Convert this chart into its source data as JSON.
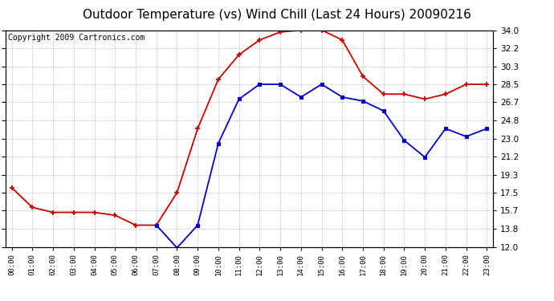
{
  "title": "Outdoor Temperature (vs) Wind Chill (Last 24 Hours) 20090216",
  "copyright": "Copyright 2009 Cartronics.com",
  "x_labels": [
    "00:00",
    "01:00",
    "02:00",
    "03:00",
    "04:00",
    "05:00",
    "06:00",
    "07:00",
    "08:00",
    "09:00",
    "10:00",
    "11:00",
    "12:00",
    "13:00",
    "14:00",
    "15:00",
    "16:00",
    "17:00",
    "18:00",
    "19:00",
    "20:00",
    "21:00",
    "22:00",
    "23:00"
  ],
  "temp_red": [
    18.0,
    16.0,
    15.5,
    15.5,
    15.5,
    15.2,
    14.2,
    14.2,
    17.5,
    24.0,
    29.0,
    31.5,
    33.0,
    33.8,
    34.0,
    34.0,
    33.0,
    29.3,
    27.5,
    27.5,
    27.0,
    27.5,
    28.5,
    28.5
  ],
  "wind_blue": [
    null,
    null,
    null,
    null,
    null,
    null,
    null,
    14.2,
    11.9,
    14.2,
    22.5,
    27.0,
    28.5,
    28.5,
    27.2,
    28.5,
    27.2,
    26.8,
    25.8,
    22.8,
    21.1,
    24.0,
    23.2,
    24.0
  ],
  "ylim": [
    12.0,
    34.0
  ],
  "yticks": [
    12.0,
    13.8,
    15.7,
    17.5,
    19.3,
    21.2,
    23.0,
    24.8,
    26.7,
    28.5,
    30.3,
    32.2,
    34.0
  ],
  "bg_color": "#ffffff",
  "plot_bg": "#ffffff",
  "grid_color": "#bbbbbb",
  "red_color": "#cc0000",
  "blue_color": "#0000cc",
  "title_fontsize": 11,
  "copyright_fontsize": 7
}
